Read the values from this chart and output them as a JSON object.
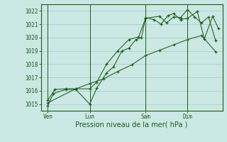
{
  "title": "",
  "xlabel": "Pression niveau de la mer( hPa )",
  "ylabel": "",
  "bg_color": "#cce8e4",
  "grid_color": "#aad0ca",
  "line_color": "#1a5e1a",
  "ylim": [
    1014.5,
    1022.5
  ],
  "yticks": [
    1015,
    1016,
    1017,
    1018,
    1019,
    1020,
    1021,
    1022
  ],
  "xtick_labels": [
    "Ven",
    "Lun",
    "Sam",
    "Dim"
  ],
  "xtick_positions": [
    0.5,
    3.5,
    7.5,
    10.5
  ],
  "vline_positions": [
    0.5,
    3.5,
    7.5,
    10.5
  ],
  "xlim": [
    0,
    13
  ],
  "line1_x": [
    0.5,
    0.9,
    1.8,
    2.5,
    3.5,
    4.0,
    4.7,
    5.2,
    5.8,
    6.3,
    6.8,
    7.2,
    7.5,
    8.1,
    8.6,
    9.1,
    9.5,
    10.0,
    10.5,
    11.2,
    11.7,
    12.3,
    12.7
  ],
  "line1_y": [
    1014.9,
    1015.8,
    1016.1,
    1016.1,
    1015.0,
    1016.2,
    1017.35,
    1017.8,
    1019.0,
    1019.2,
    1019.85,
    1020.0,
    1021.5,
    1021.35,
    1021.0,
    1021.65,
    1021.8,
    1021.35,
    1021.45,
    1021.95,
    1019.9,
    1021.6,
    1020.7
  ],
  "line2_x": [
    0.5,
    1.0,
    1.8,
    2.5,
    3.5,
    4.0,
    4.7,
    5.5,
    6.3,
    7.0,
    7.5,
    8.5,
    9.0,
    9.5,
    10.0,
    10.5,
    11.0,
    11.5,
    12.0,
    12.5
  ],
  "line2_y": [
    1015.3,
    1016.1,
    1016.15,
    1016.15,
    1016.15,
    1016.65,
    1018.0,
    1019.0,
    1019.85,
    1020.05,
    1021.45,
    1021.6,
    1021.1,
    1021.55,
    1021.5,
    1022.1,
    1021.55,
    1021.1,
    1021.55,
    1019.8
  ],
  "line3_x": [
    0.5,
    2.5,
    3.5,
    4.5,
    5.5,
    6.5,
    7.5,
    8.5,
    9.5,
    10.5,
    11.5,
    12.5
  ],
  "line3_y": [
    1015.1,
    1016.15,
    1016.55,
    1016.9,
    1017.45,
    1017.95,
    1018.65,
    1019.05,
    1019.45,
    1019.85,
    1020.15,
    1018.95
  ]
}
